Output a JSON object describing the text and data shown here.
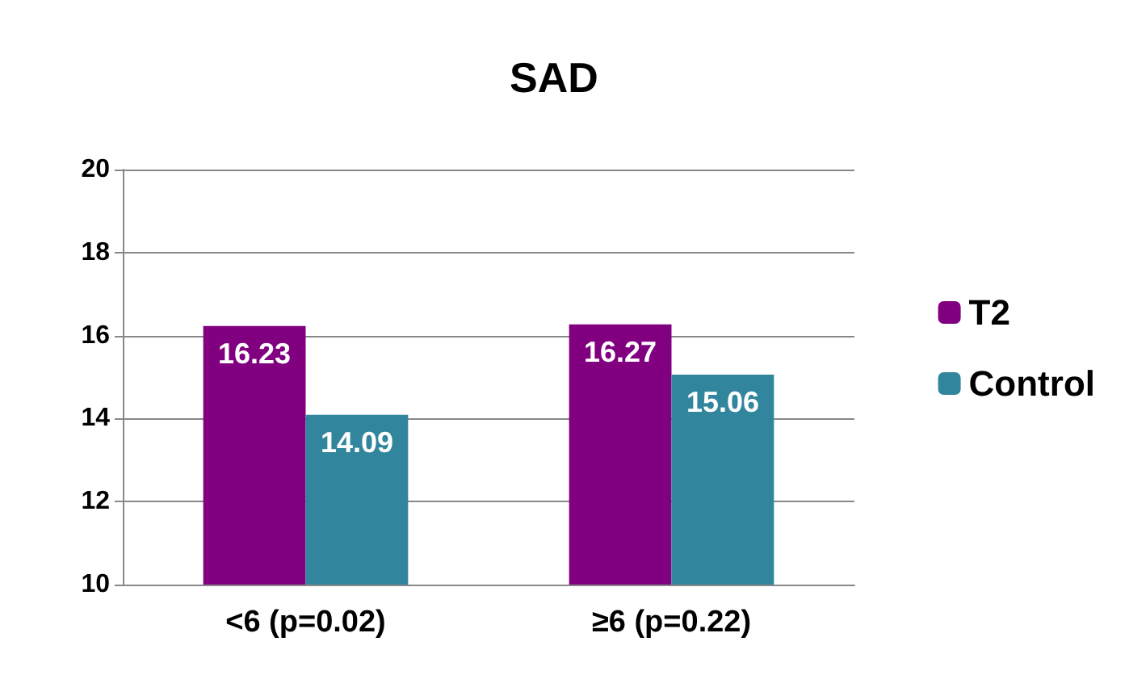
{
  "chart_data": {
    "type": "bar",
    "title": "SAD",
    "categories": [
      "<6 (p=0.02)",
      "≥6 (p=0.22)"
    ],
    "series": [
      {
        "name": "T2",
        "color": "#800080",
        "values": [
          16.23,
          16.27
        ]
      },
      {
        "name": "Control",
        "color": "#31859c",
        "values": [
          14.09,
          15.06
        ]
      }
    ],
    "ylim": [
      10,
      20
    ],
    "yticks": [
      10,
      12,
      14,
      16,
      18,
      20
    ],
    "grid": "y",
    "legend": "right",
    "data_labels": true
  }
}
